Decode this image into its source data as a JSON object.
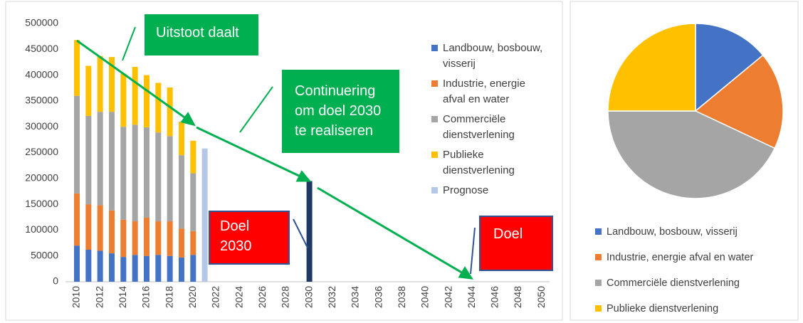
{
  "chart_data": [
    {
      "type": "bar",
      "stacked": true,
      "categories": [
        "2010",
        null,
        "2012",
        null,
        "2014",
        null,
        "2016",
        null,
        "2018",
        null,
        "2020",
        null,
        "2022",
        null,
        "2024",
        null,
        "2026",
        null,
        "2028",
        null,
        "2030",
        null,
        "2032",
        null,
        "2034",
        null,
        "2036",
        null,
        "2038",
        null,
        "2040",
        null,
        "2042",
        null,
        "2044",
        null,
        "2046",
        null,
        "2048",
        null,
        "2050"
      ],
      "series": [
        {
          "name": "Landbouw, bosbouw, visserij",
          "color": "#4472c4",
          "values": [
            70000,
            62000,
            60000,
            55000,
            48000,
            52000,
            50000,
            52000,
            50000,
            47000,
            52000,
            null,
            null,
            null,
            null,
            null,
            null,
            null,
            null,
            null,
            null,
            null,
            null,
            null,
            null,
            null,
            null,
            null,
            null,
            null,
            null,
            null,
            null,
            null,
            null,
            null,
            null,
            null,
            null,
            null,
            null
          ]
        },
        {
          "name": "Industrie, energie afval en water",
          "color": "#ed7d31",
          "values": [
            101000,
            88000,
            88000,
            83000,
            72000,
            65000,
            74000,
            65000,
            67000,
            56000,
            46000,
            null,
            null,
            null,
            null,
            null,
            null,
            null,
            null,
            null,
            null,
            null,
            null,
            null,
            null,
            null,
            null,
            null,
            null,
            null,
            null,
            null,
            null,
            null,
            null,
            null,
            null,
            null,
            null,
            null,
            null
          ]
        },
        {
          "name": "Commerciële dienstverlening",
          "color": "#a5a5a5",
          "values": [
            189000,
            171000,
            181000,
            191000,
            180000,
            187000,
            175000,
            172000,
            165000,
            142000,
            112000,
            null,
            null,
            null,
            null,
            null,
            null,
            null,
            null,
            null,
            null,
            null,
            null,
            null,
            null,
            null,
            null,
            null,
            null,
            null,
            null,
            null,
            null,
            null,
            null,
            null,
            null,
            null,
            null,
            null,
            null
          ]
        },
        {
          "name": "Publieke dienstverlening",
          "color": "#ffc000",
          "values": [
            108000,
            97000,
            108000,
            106000,
            103000,
            112000,
            101000,
            96000,
            94000,
            65000,
            63000,
            null,
            null,
            null,
            null,
            null,
            null,
            null,
            null,
            null,
            null,
            null,
            null,
            null,
            null,
            null,
            null,
            null,
            null,
            null,
            null,
            null,
            null,
            null,
            null,
            null,
            null,
            null,
            null,
            null,
            null
          ]
        },
        {
          "name": "Prognose",
          "color": "#b4c7e7",
          "values": [
            null,
            null,
            null,
            null,
            null,
            null,
            null,
            null,
            null,
            null,
            null,
            258000,
            null,
            null,
            null,
            null,
            null,
            null,
            null,
            null,
            null,
            null,
            null,
            null,
            null,
            null,
            null,
            null,
            null,
            null,
            null,
            null,
            null,
            null,
            null,
            null,
            null,
            null,
            null,
            null,
            null
          ]
        },
        {
          "color": "#203864",
          "values": [
            null,
            null,
            null,
            null,
            null,
            null,
            null,
            null,
            null,
            null,
            null,
            null,
            null,
            null,
            null,
            null,
            null,
            null,
            null,
            null,
            195000,
            null,
            null,
            null,
            null,
            null,
            null,
            null,
            null,
            null,
            null,
            null,
            null,
            null,
            null,
            null,
            null,
            null,
            null,
            null,
            null
          ]
        }
      ],
      "ylim": [
        0,
        500000
      ],
      "yticks": [
        0,
        50000,
        100000,
        150000,
        200000,
        250000,
        300000,
        350000,
        400000,
        450000,
        500000
      ],
      "annotations": [
        "Uitstoot daalt",
        "Continuering om doel 2030 te realiseren",
        "Doel 2030",
        "Doel"
      ]
    },
    {
      "type": "pie",
      "categories": [
        "Landbouw, bosbouw, visserij",
        "Industrie, energie afval en water",
        "Commerciële dienstverlening",
        "Publieke dienstverlening"
      ],
      "values": [
        14,
        18,
        43,
        25
      ],
      "colors": [
        "#4472c4",
        "#ed7d31",
        "#a5a5a5",
        "#ffc000"
      ]
    }
  ]
}
